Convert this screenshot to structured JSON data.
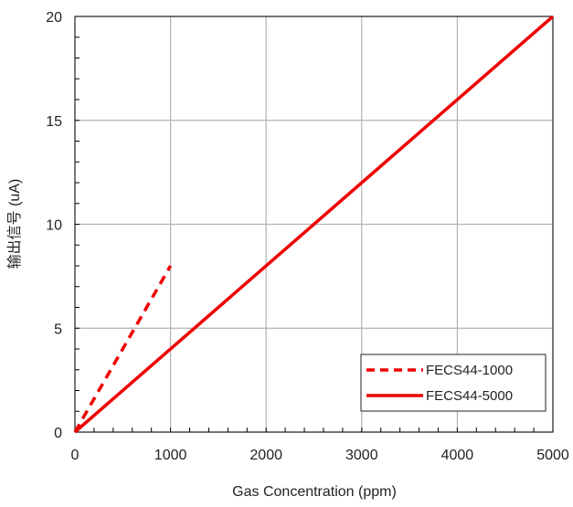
{
  "chart_data": {
    "type": "line",
    "xlabel": "Gas Concentration (ppm)",
    "ylabel": "输出信号 (uA)",
    "xlim": [
      0,
      5000
    ],
    "ylim": [
      0,
      20
    ],
    "x_ticks": [
      0,
      1000,
      2000,
      3000,
      4000,
      5000
    ],
    "y_ticks": [
      0,
      5,
      10,
      15,
      20
    ],
    "grid": true,
    "legend_position": "bottom-right",
    "series": [
      {
        "name": "FECS44-1000",
        "x": [
          0,
          1000
        ],
        "y": [
          0,
          8
        ],
        "color": "#ee0000",
        "style": "dashed"
      },
      {
        "name": "FECS44-5000",
        "x": [
          0,
          5000
        ],
        "y": [
          0,
          20
        ],
        "color": "#ee0000",
        "style": "solid"
      }
    ]
  }
}
